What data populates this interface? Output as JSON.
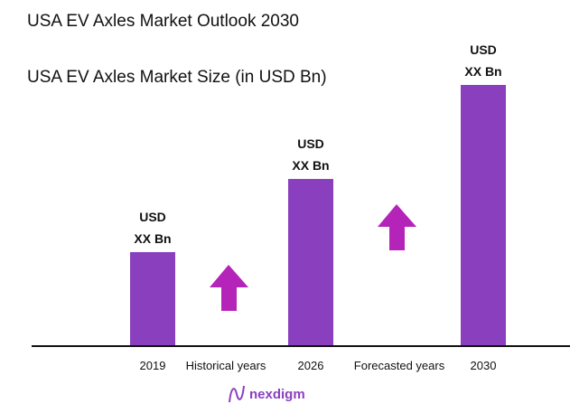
{
  "header": {
    "title": "USA EV Axles Market Outlook 2030"
  },
  "chart_data": {
    "type": "bar",
    "title": "USA EV Axles Market Size (in USD Bn)",
    "categories": [
      "2019",
      "2026",
      "2030"
    ],
    "values": [
      36,
      64,
      100
    ],
    "ylim": [
      0,
      105
    ],
    "data_labels": [
      "USD XX Bn",
      "USD XX Bn",
      "USD XX Bn"
    ],
    "period_labels": [
      "Historical years",
      "Forecasted years"
    ],
    "grid": false,
    "colors": {
      "bar": "#8a3fbf",
      "arrow": "#b524b8"
    }
  },
  "logo": {
    "text": "nexdigm"
  }
}
